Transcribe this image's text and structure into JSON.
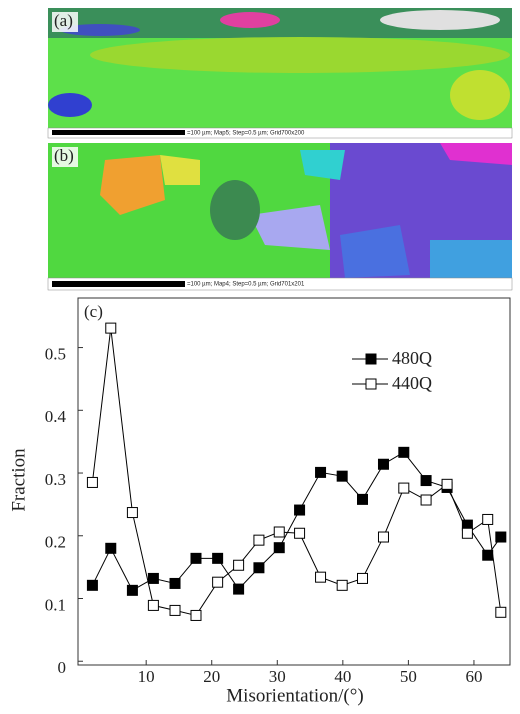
{
  "panels": [
    {
      "label": "(a)",
      "scale_text": "=100 µm; Map5; Step=0.5 µm; Grid700x200"
    },
    {
      "label": "(b)",
      "scale_text": "=100 µm; Map4; Step=0.5 µm; Grid701x201"
    }
  ],
  "chart_data": {
    "type": "line",
    "label": "(c)",
    "x_label": "Misorientation/(°)",
    "y_label": "Fraction",
    "xlim": [
      -0.4,
      65.5
    ],
    "ylim": [
      -0.006,
      0.579
    ],
    "xticks": [
      10,
      20,
      30,
      40,
      50,
      60
    ],
    "yticks": [
      0,
      0.1,
      0.2,
      0.3,
      0.4,
      0.5
    ],
    "legend": "upper right",
    "x": [
      1.8,
      4.6,
      7.9,
      11.1,
      14.4,
      17.6,
      20.9,
      24.1,
      27.2,
      30.3,
      33.4,
      36.6,
      39.9,
      43,
      46.2,
      49.3,
      52.7,
      55.9,
      59,
      62.1,
      64.1
    ],
    "series": [
      {
        "name": "480Q",
        "color": "#000000",
        "marker": "filled",
        "values": [
          0.121,
          0.18,
          0.113,
          0.132,
          0.124,
          0.164,
          0.164,
          0.115,
          0.149,
          0.181,
          0.241,
          0.301,
          0.295,
          0.258,
          0.314,
          0.333,
          0.288,
          0.277,
          0.217,
          0.169,
          0.198
        ]
      },
      {
        "name": "440Q",
        "color": "#000000",
        "marker": "open",
        "values": [
          0.285,
          0.531,
          0.237,
          0.089,
          0.081,
          0.073,
          0.126,
          0.153,
          0.193,
          0.206,
          0.204,
          0.134,
          0.121,
          0.132,
          0.198,
          0.276,
          0.257,
          0.282,
          0.204,
          0.226,
          0.078
        ]
      }
    ]
  }
}
